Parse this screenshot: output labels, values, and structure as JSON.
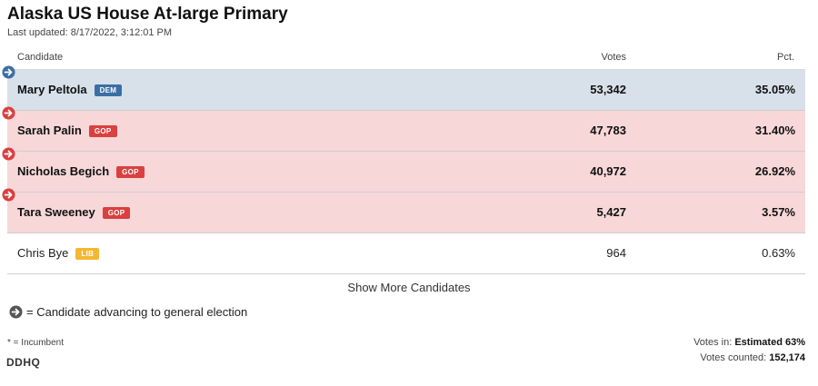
{
  "header": {
    "title": "Alaska US House At-large Primary",
    "updated_label": "Last updated:",
    "updated_value": "8/17/2022, 3:12:01 PM"
  },
  "table": {
    "columns": {
      "candidate": "Candidate",
      "votes": "Votes",
      "pct": "Pct."
    },
    "rows": [
      {
        "name": "Mary Peltola",
        "party": "DEM",
        "votes": "53,342",
        "pct": "35.05%",
        "advancing": true
      },
      {
        "name": "Sarah Palin",
        "party": "GOP",
        "votes": "47,783",
        "pct": "31.40%",
        "advancing": true
      },
      {
        "name": "Nicholas Begich",
        "party": "GOP",
        "votes": "40,972",
        "pct": "26.92%",
        "advancing": true
      },
      {
        "name": "Tara Sweeney",
        "party": "GOP",
        "votes": "5,427",
        "pct": "3.57%",
        "advancing": true
      },
      {
        "name": "Chris Bye",
        "party": "LIB",
        "votes": "964",
        "pct": "0.63%",
        "advancing": false
      }
    ]
  },
  "show_more_label": "Show More Candidates",
  "legend": {
    "text": "= Candidate advancing to general election"
  },
  "footer": {
    "incumbent_note": "* = Incumbent",
    "logo": "DDHQ",
    "votes_in_label": "Votes in:",
    "votes_in_value": "Estimated 63%",
    "votes_counted_label": "Votes counted:",
    "votes_counted_value": "152,174"
  },
  "colors": {
    "dem": "#3b6fa3",
    "gop": "#d9403f",
    "lib": "#f5b731",
    "dem_row": "#d8e1ea",
    "gop_row": "#f7d7d8",
    "legend_icon": "#555555"
  },
  "icons": {
    "advancing": "arrow-right-circle-icon"
  }
}
